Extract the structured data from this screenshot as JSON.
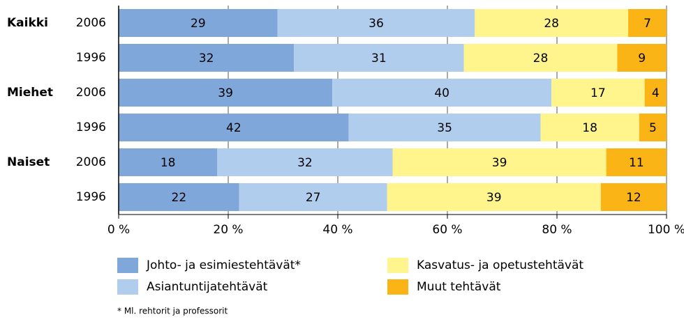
{
  "chart_data": {
    "type": "stacked-barh",
    "groups": [
      "Kaikki",
      "Miehet",
      "Naiset"
    ],
    "categories": [
      "2006",
      "1996",
      "2006",
      "1996",
      "2006",
      "1996"
    ],
    "series": [
      {
        "name": "Johto- ja esimiestehtävät*",
        "color": "#7fa7d9",
        "values": [
          29,
          32,
          39,
          42,
          18,
          22
        ]
      },
      {
        "name": "Asiantuntijatehtävät",
        "color": "#b0cdee",
        "values": [
          36,
          31,
          40,
          35,
          32,
          27
        ]
      },
      {
        "name": "Kasvatus- ja opetustehtävät",
        "color": "#fff58c",
        "values": [
          28,
          28,
          17,
          18,
          39,
          39
        ]
      },
      {
        "name": "Muut tehtävät",
        "color": "#fbb416",
        "values": [
          7,
          9,
          4,
          5,
          11,
          12
        ]
      }
    ],
    "xlim": [
      0,
      100
    ],
    "xticks": [
      {
        "value": 0,
        "label": "0 %"
      },
      {
        "value": 20,
        "label": "20 %"
      },
      {
        "value": 40,
        "label": "40 %"
      },
      {
        "value": 60,
        "label": "60 %"
      },
      {
        "value": 80,
        "label": "80 %"
      },
      {
        "value": 100,
        "label": "100 %"
      }
    ],
    "grid": true,
    "footnote": "* Ml. rehtorit ja professorit"
  }
}
